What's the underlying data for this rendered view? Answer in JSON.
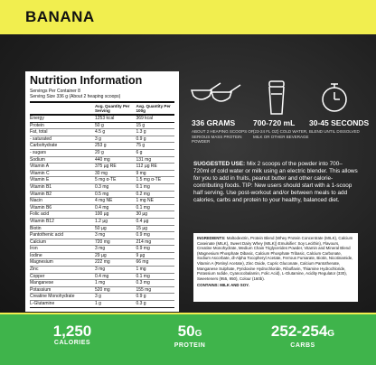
{
  "header": {
    "title": "BANANA"
  },
  "nutrition": {
    "title": "Nutrition Information",
    "servings": "Servings Per Container 8",
    "serving_size": "Serving Size 336 g (About 2 heaping scoops)",
    "columns": [
      "Avg. Quantity Per Serving",
      "Avg. Quantity Per 100g"
    ],
    "rows": [
      [
        "Energy",
        "1253 kcal",
        "369 kcal"
      ],
      [
        "Protein",
        "50 g",
        "15 g"
      ],
      [
        "Fat, total",
        "4.5 g",
        "1.3 g"
      ],
      [
        "- saturated",
        "3 g",
        "0.9 g"
      ],
      [
        "Carbohydrate",
        "253 g",
        "75 g"
      ],
      [
        "- sugars",
        "20 g",
        "6 g"
      ],
      [
        "Sodium",
        "440 mg",
        "131 mg"
      ],
      [
        "Vitamin A",
        "375 µg RE",
        "112 µg RE"
      ],
      [
        "Vitamin C",
        "30 mg",
        "9 mg"
      ],
      [
        "Vitamin E",
        "5 mg α-TE",
        "1.5 mg α-TE"
      ],
      [
        "Vitamin B1",
        "0.3 mg",
        "0.1 mg"
      ],
      [
        "Vitamin B2",
        "0.5 mg",
        "0.2 mg"
      ],
      [
        "Niacin",
        "4 mg NE",
        "1 mg NE"
      ],
      [
        "Vitamin B6",
        "0.4 mg",
        "0.1 mg"
      ],
      [
        "Folic acid",
        "100 µg",
        "30 µg"
      ],
      [
        "Vitamin B12",
        "1.2 µg",
        "0.4 µg"
      ],
      [
        "Biotin",
        "50 µg",
        "15 µg"
      ],
      [
        "Pantothenic acid",
        "3 mg",
        "0.9 mg"
      ],
      [
        "Calcium",
        "720 mg",
        "214 mg"
      ],
      [
        "Iron",
        "3 mg",
        "0.9 mg"
      ],
      [
        "Iodine",
        "29 µg",
        "9 µg"
      ],
      [
        "Magnesium",
        "222 mg",
        "66 mg"
      ],
      [
        "Zinc",
        "3 mg",
        "1 mg"
      ],
      [
        "Copper",
        "0.4 mg",
        "0.1 mg"
      ],
      [
        "Manganese",
        "1 mg",
        "0.3 mg"
      ],
      [
        "Potassium",
        "520 mg",
        "155 mg"
      ],
      [
        "Creatine Monohydrate",
        "3 g",
        "0.9 g"
      ],
      [
        "L-Glutamine",
        "1 g",
        "0.3 g"
      ]
    ]
  },
  "usage": [
    {
      "heading": "336 GRAMS",
      "text": "ABOUT 2 HEAPING SCOOPS OF SERIOUS MASS PROTEIN POWDER"
    },
    {
      "heading": "700-720 mL",
      "text": "(23-24 FL OZ) COLD WATER, MILK OR OTHER BEVERAGE"
    },
    {
      "heading": "30-45 SECONDS",
      "text": "BLEND UNTIL DISSOLVED"
    }
  ],
  "suggested_use": {
    "label": "SUGGESTED USE:",
    "text": "Mix 2 scoops of the powder into 700–720ml of cold water or milk using an electric blender. This allows for you to add in fruits, peanut butter and other calorie-contributing foods. TIP: New users should start with a 1-scoop half serving. Use post-workout and/or between meals to add calories, carbs and protein to your healthy, balanced diet."
  },
  "ingredients": {
    "label": "INGREDIENTS:",
    "text": "Maltodextrin, Protein Blend (Whey Protein Concentrate (MILK), Calcium Caseinate (MILK), Sweet Dairy Whey (MILK)) Emulsifier: Soy Lecithin), Flavours, Creatine Monohydrate, Medium Chain Triglycerides Powder, Vitamin and Mineral Blend (Magnesium Phosphate Dibasic, Calcium Phosphate Tribasic, Calcium Carbonate, Sodium Ascorbate, dl-Alpha Tocopheryl Acetate, Ferrous Fumarate, Biotin, Nicotinamide, Vitamin A (Retinyl Acetate), Zinc Oxide, Cupric Gluconate, Calcium Pantothenate, Manganese Sulphate, Pyridoxine Hydrochloride, Riboflavin, Thiamine Hydrochloride, Potassium Iodide, Cyanocobalamin, Folic Acid), L-Glutamine, Acidity Regulator (330), Sweeteners (955, 950), Colour (160b).",
    "contains": "CONTAINS: MILK AND SOY."
  },
  "stats": [
    {
      "value": "1,250",
      "label": "CALORIES"
    },
    {
      "value": "50",
      "unit": "G",
      "label": "PROTEIN"
    },
    {
      "value": "252-254",
      "unit": "G",
      "label": "CARBS"
    }
  ]
}
